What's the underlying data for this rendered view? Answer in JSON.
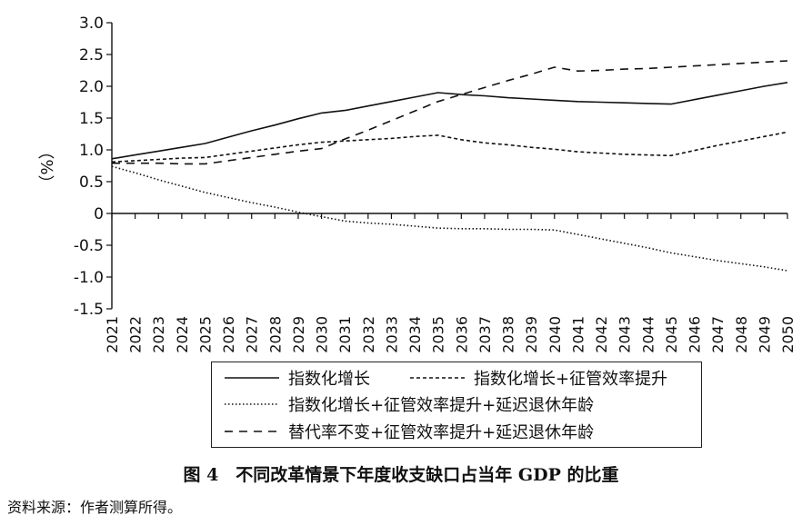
{
  "chart_data": {
    "type": "line",
    "ylabel": "（%）",
    "ylim": [
      -1.5,
      3.0
    ],
    "yticks": [
      3.0,
      2.5,
      2.0,
      1.5,
      1.0,
      0.5,
      0,
      -0.5,
      -1.0,
      -1.5
    ],
    "ytick_labels": [
      "3.0",
      "2.5",
      "2.0",
      "1.5",
      "1.0",
      "0.5",
      "0",
      "-0.5",
      "-1.0",
      "-1.5"
    ],
    "categories": [
      "2021",
      "2022",
      "2023",
      "2024",
      "2025",
      "2026",
      "2027",
      "2028",
      "2029",
      "2030",
      "2031",
      "2032",
      "2033",
      "2034",
      "2035",
      "2036",
      "2037",
      "2038",
      "2039",
      "2040",
      "2041",
      "2042",
      "2043",
      "2044",
      "2045",
      "2046",
      "2047",
      "2048",
      "2049",
      "2050"
    ],
    "grid": false,
    "legend_position": "bottom",
    "series": [
      {
        "name": "指数化增长",
        "style": "solid",
        "values": [
          0.86,
          0.92,
          0.98,
          1.04,
          1.1,
          1.2,
          1.3,
          1.39,
          1.49,
          1.58,
          1.62,
          1.69,
          1.76,
          1.83,
          1.9,
          1.87,
          1.85,
          1.82,
          1.8,
          1.78,
          1.76,
          1.75,
          1.74,
          1.73,
          1.72,
          1.79,
          1.86,
          1.93,
          2.0,
          2.06
        ]
      },
      {
        "name": "指数化增长+征管效率提升",
        "style": "dashed-short",
        "values": [
          0.81,
          0.83,
          0.85,
          0.87,
          0.88,
          0.93,
          0.98,
          1.03,
          1.08,
          1.12,
          1.14,
          1.16,
          1.18,
          1.21,
          1.23,
          1.16,
          1.11,
          1.08,
          1.04,
          1.01,
          0.97,
          0.95,
          0.93,
          0.92,
          0.91,
          0.99,
          1.07,
          1.14,
          1.21,
          1.28
        ]
      },
      {
        "name": "指数化增长+征管效率提升+延迟退休年龄",
        "style": "dotted",
        "values": [
          0.74,
          0.64,
          0.53,
          0.43,
          0.33,
          0.25,
          0.17,
          0.1,
          0.02,
          -0.05,
          -0.12,
          -0.15,
          -0.17,
          -0.2,
          -0.23,
          -0.24,
          -0.24,
          -0.25,
          -0.25,
          -0.26,
          -0.33,
          -0.4,
          -0.47,
          -0.54,
          -0.62,
          -0.68,
          -0.74,
          -0.79,
          -0.84,
          -0.9
        ]
      },
      {
        "name": "替代率不变+征管效率提升+延迟退休年龄",
        "style": "dashed-long",
        "values": [
          0.79,
          0.79,
          0.79,
          0.78,
          0.78,
          0.83,
          0.88,
          0.93,
          0.98,
          1.02,
          1.17,
          1.31,
          1.46,
          1.61,
          1.76,
          1.87,
          1.98,
          2.09,
          2.19,
          2.3,
          2.24,
          2.25,
          2.27,
          2.28,
          2.3,
          2.32,
          2.34,
          2.36,
          2.38,
          2.4
        ]
      }
    ]
  },
  "caption": "图 4　不同改革情景下年度收支缺口占当年 GDP 的比重",
  "source": "资料来源：作者测算所得。"
}
